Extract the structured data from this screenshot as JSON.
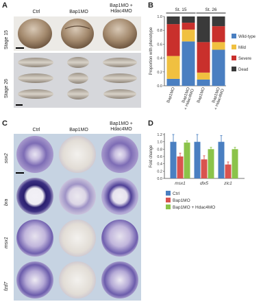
{
  "panel_letters": {
    "a": "A",
    "b": "B",
    "c": "C",
    "d": "D"
  },
  "panelA": {
    "columns": [
      "Ctrl",
      "Bap1MO",
      "Bap1MO +\nHdac4MO"
    ],
    "rows": [
      "Stage 15",
      "Stage 26"
    ]
  },
  "panelC": {
    "columns": [
      "Ctrl",
      "Bap1MO",
      "Bap1MO +\nHdac4MO"
    ],
    "rows": [
      "sox2",
      "bra",
      "msx1",
      "fzd7"
    ]
  },
  "chart_data": [
    {
      "id": "B",
      "type": "bar",
      "stacked": true,
      "ylabel": "Proportion with phenotype",
      "ylim": [
        0,
        1.0
      ],
      "yticks": [
        "0.0",
        "0.2",
        "0.4",
        "0.6",
        "0.8",
        "1.0"
      ],
      "groups": [
        {
          "label": "St. 15",
          "categories": [
            "Bap1MO",
            "Bap1MO\n+ Hdac4MO"
          ]
        },
        {
          "label": "St. 26",
          "categories": [
            "Bap1MO",
            "Bap1MO\n+ Hdac4MO"
          ]
        }
      ],
      "categories": [
        "Bap1MO",
        "Bap1MO\n+ Hdac4MO",
        "Bap1MO",
        "Bap1MO\n+ Hdac4MO"
      ],
      "series": [
        {
          "name": "Wild-type",
          "color": "#4a7fc1",
          "values": [
            0.1,
            0.64,
            0.09,
            0.52
          ]
        },
        {
          "name": "Mild",
          "color": "#f0c040",
          "values": [
            0.33,
            0.17,
            0.1,
            0.11
          ]
        },
        {
          "name": "Severe",
          "color": "#c9302c",
          "values": [
            0.46,
            0.1,
            0.44,
            0.23
          ]
        },
        {
          "name": "Dead",
          "color": "#3a3a3a",
          "values": [
            0.11,
            0.09,
            0.37,
            0.14
          ]
        }
      ],
      "legend_position": "right"
    },
    {
      "id": "D",
      "type": "bar",
      "ylabel": "Fold change",
      "ylim": [
        0,
        1.2
      ],
      "yticks": [
        "0.0",
        "0.2",
        "0.4",
        "0.6",
        "0.8",
        "1.0",
        "1.2"
      ],
      "categories": [
        "msx1",
        "dlx5",
        "zic1"
      ],
      "series": [
        {
          "name": "Ctrl",
          "color": "#4a7fc1",
          "values": [
            1.0,
            1.0,
            1.0
          ],
          "errors": [
            0.2,
            0.2,
            0.17
          ]
        },
        {
          "name": "Bap1MO",
          "color": "#d9534f",
          "values": [
            0.6,
            0.52,
            0.38
          ],
          "errors": [
            0.09,
            0.1,
            0.07
          ]
        },
        {
          "name": "Bap1MO + Hdac4MO",
          "color": "#8bc34a",
          "values": [
            0.98,
            0.8,
            0.8
          ],
          "errors": [
            0.05,
            0.05,
            0.05
          ]
        }
      ],
      "legend_position": "bottom"
    }
  ]
}
